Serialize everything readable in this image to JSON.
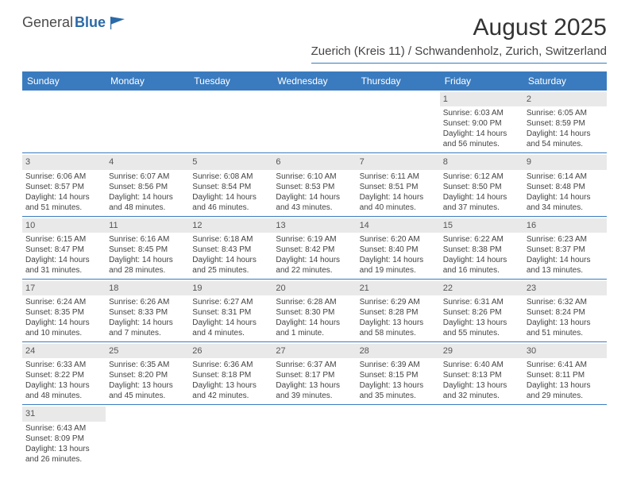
{
  "logo": {
    "text1": "General",
    "text2": "Blue"
  },
  "title": "August 2025",
  "location": "Zuerich (Kreis 11) / Schwandenholz, Zurich, Switzerland",
  "colors": {
    "header_bg": "#3a7bbf",
    "header_text": "#ffffff",
    "rule": "#3a7bbf",
    "daynum_bg": "#e9e9e9",
    "body_text": "#434343"
  },
  "typography": {
    "title_fontsize": 30,
    "location_fontsize": 15,
    "dayhead_fontsize": 12,
    "cell_fontsize": 10,
    "daynum_fontsize": 11
  },
  "day_headers": [
    "Sunday",
    "Monday",
    "Tuesday",
    "Wednesday",
    "Thursday",
    "Friday",
    "Saturday"
  ],
  "weeks": [
    [
      null,
      null,
      null,
      null,
      null,
      {
        "n": "1",
        "sr": "Sunrise: 6:03 AM",
        "ss": "Sunset: 9:00 PM",
        "d1": "Daylight: 14 hours",
        "d2": "and 56 minutes."
      },
      {
        "n": "2",
        "sr": "Sunrise: 6:05 AM",
        "ss": "Sunset: 8:59 PM",
        "d1": "Daylight: 14 hours",
        "d2": "and 54 minutes."
      }
    ],
    [
      {
        "n": "3",
        "sr": "Sunrise: 6:06 AM",
        "ss": "Sunset: 8:57 PM",
        "d1": "Daylight: 14 hours",
        "d2": "and 51 minutes."
      },
      {
        "n": "4",
        "sr": "Sunrise: 6:07 AM",
        "ss": "Sunset: 8:56 PM",
        "d1": "Daylight: 14 hours",
        "d2": "and 48 minutes."
      },
      {
        "n": "5",
        "sr": "Sunrise: 6:08 AM",
        "ss": "Sunset: 8:54 PM",
        "d1": "Daylight: 14 hours",
        "d2": "and 46 minutes."
      },
      {
        "n": "6",
        "sr": "Sunrise: 6:10 AM",
        "ss": "Sunset: 8:53 PM",
        "d1": "Daylight: 14 hours",
        "d2": "and 43 minutes."
      },
      {
        "n": "7",
        "sr": "Sunrise: 6:11 AM",
        "ss": "Sunset: 8:51 PM",
        "d1": "Daylight: 14 hours",
        "d2": "and 40 minutes."
      },
      {
        "n": "8",
        "sr": "Sunrise: 6:12 AM",
        "ss": "Sunset: 8:50 PM",
        "d1": "Daylight: 14 hours",
        "d2": "and 37 minutes."
      },
      {
        "n": "9",
        "sr": "Sunrise: 6:14 AM",
        "ss": "Sunset: 8:48 PM",
        "d1": "Daylight: 14 hours",
        "d2": "and 34 minutes."
      }
    ],
    [
      {
        "n": "10",
        "sr": "Sunrise: 6:15 AM",
        "ss": "Sunset: 8:47 PM",
        "d1": "Daylight: 14 hours",
        "d2": "and 31 minutes."
      },
      {
        "n": "11",
        "sr": "Sunrise: 6:16 AM",
        "ss": "Sunset: 8:45 PM",
        "d1": "Daylight: 14 hours",
        "d2": "and 28 minutes."
      },
      {
        "n": "12",
        "sr": "Sunrise: 6:18 AM",
        "ss": "Sunset: 8:43 PM",
        "d1": "Daylight: 14 hours",
        "d2": "and 25 minutes."
      },
      {
        "n": "13",
        "sr": "Sunrise: 6:19 AM",
        "ss": "Sunset: 8:42 PM",
        "d1": "Daylight: 14 hours",
        "d2": "and 22 minutes."
      },
      {
        "n": "14",
        "sr": "Sunrise: 6:20 AM",
        "ss": "Sunset: 8:40 PM",
        "d1": "Daylight: 14 hours",
        "d2": "and 19 minutes."
      },
      {
        "n": "15",
        "sr": "Sunrise: 6:22 AM",
        "ss": "Sunset: 8:38 PM",
        "d1": "Daylight: 14 hours",
        "d2": "and 16 minutes."
      },
      {
        "n": "16",
        "sr": "Sunrise: 6:23 AM",
        "ss": "Sunset: 8:37 PM",
        "d1": "Daylight: 14 hours",
        "d2": "and 13 minutes."
      }
    ],
    [
      {
        "n": "17",
        "sr": "Sunrise: 6:24 AM",
        "ss": "Sunset: 8:35 PM",
        "d1": "Daylight: 14 hours",
        "d2": "and 10 minutes."
      },
      {
        "n": "18",
        "sr": "Sunrise: 6:26 AM",
        "ss": "Sunset: 8:33 PM",
        "d1": "Daylight: 14 hours",
        "d2": "and 7 minutes."
      },
      {
        "n": "19",
        "sr": "Sunrise: 6:27 AM",
        "ss": "Sunset: 8:31 PM",
        "d1": "Daylight: 14 hours",
        "d2": "and 4 minutes."
      },
      {
        "n": "20",
        "sr": "Sunrise: 6:28 AM",
        "ss": "Sunset: 8:30 PM",
        "d1": "Daylight: 14 hours",
        "d2": "and 1 minute."
      },
      {
        "n": "21",
        "sr": "Sunrise: 6:29 AM",
        "ss": "Sunset: 8:28 PM",
        "d1": "Daylight: 13 hours",
        "d2": "and 58 minutes."
      },
      {
        "n": "22",
        "sr": "Sunrise: 6:31 AM",
        "ss": "Sunset: 8:26 PM",
        "d1": "Daylight: 13 hours",
        "d2": "and 55 minutes."
      },
      {
        "n": "23",
        "sr": "Sunrise: 6:32 AM",
        "ss": "Sunset: 8:24 PM",
        "d1": "Daylight: 13 hours",
        "d2": "and 51 minutes."
      }
    ],
    [
      {
        "n": "24",
        "sr": "Sunrise: 6:33 AM",
        "ss": "Sunset: 8:22 PM",
        "d1": "Daylight: 13 hours",
        "d2": "and 48 minutes."
      },
      {
        "n": "25",
        "sr": "Sunrise: 6:35 AM",
        "ss": "Sunset: 8:20 PM",
        "d1": "Daylight: 13 hours",
        "d2": "and 45 minutes."
      },
      {
        "n": "26",
        "sr": "Sunrise: 6:36 AM",
        "ss": "Sunset: 8:18 PM",
        "d1": "Daylight: 13 hours",
        "d2": "and 42 minutes."
      },
      {
        "n": "27",
        "sr": "Sunrise: 6:37 AM",
        "ss": "Sunset: 8:17 PM",
        "d1": "Daylight: 13 hours",
        "d2": "and 39 minutes."
      },
      {
        "n": "28",
        "sr": "Sunrise: 6:39 AM",
        "ss": "Sunset: 8:15 PM",
        "d1": "Daylight: 13 hours",
        "d2": "and 35 minutes."
      },
      {
        "n": "29",
        "sr": "Sunrise: 6:40 AM",
        "ss": "Sunset: 8:13 PM",
        "d1": "Daylight: 13 hours",
        "d2": "and 32 minutes."
      },
      {
        "n": "30",
        "sr": "Sunrise: 6:41 AM",
        "ss": "Sunset: 8:11 PM",
        "d1": "Daylight: 13 hours",
        "d2": "and 29 minutes."
      }
    ],
    [
      {
        "n": "31",
        "sr": "Sunrise: 6:43 AM",
        "ss": "Sunset: 8:09 PM",
        "d1": "Daylight: 13 hours",
        "d2": "and 26 minutes."
      },
      null,
      null,
      null,
      null,
      null,
      null
    ]
  ]
}
